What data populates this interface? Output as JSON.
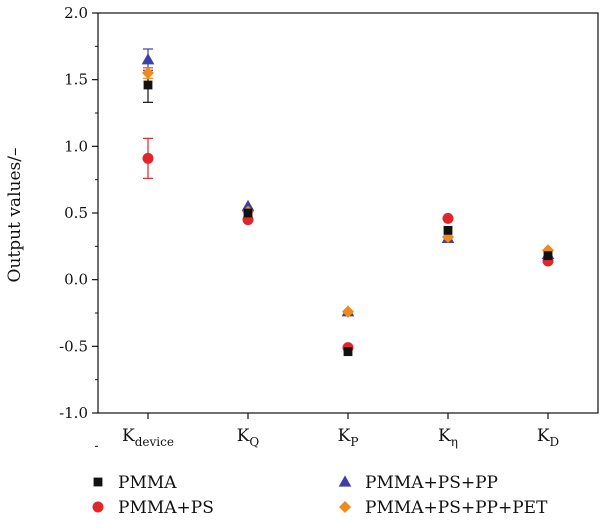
{
  "chart_data": {
    "type": "scatter",
    "title": "",
    "xlabel": "",
    "ylabel": "Output values/–",
    "ylim": [
      -1.0,
      2.0
    ],
    "yticks": [
      "2.0",
      "1.5",
      "1.0",
      "0.5",
      "0.0",
      "-0.5",
      "-1.0"
    ],
    "ytick_values": [
      2.0,
      1.5,
      1.0,
      0.5,
      0.0,
      -0.5,
      -1.0
    ],
    "categories": [
      {
        "main": "K",
        "sub": "device"
      },
      {
        "main": "K",
        "sub": "Q"
      },
      {
        "main": "K",
        "sub": "P"
      },
      {
        "main": "K",
        "sub": "η"
      },
      {
        "main": "K",
        "sub": "D"
      }
    ],
    "grid": false,
    "legend_position": "bottom",
    "series": [
      {
        "name": "PMMA",
        "marker": "square",
        "color": "#111111",
        "values": [
          1.46,
          0.5,
          -0.54,
          0.37,
          0.18
        ],
        "errors": [
          0.13,
          0,
          0,
          0,
          0
        ]
      },
      {
        "name": "PMMA+PS",
        "marker": "circle",
        "color": "#e0262b",
        "values": [
          0.91,
          0.45,
          -0.51,
          0.46,
          0.14
        ],
        "errors": [
          0.15,
          0,
          0,
          0,
          0
        ]
      },
      {
        "name": "PMMA+PS+PP",
        "marker": "triangle",
        "color": "#3b3fa8",
        "values": [
          1.65,
          0.55,
          -0.24,
          0.31,
          0.19
        ],
        "errors": [
          0.08,
          0,
          0,
          0,
          0
        ]
      },
      {
        "name": "PMMA+PS+PP+PET",
        "marker": "diamond",
        "color": "#f08a1c",
        "values": [
          1.55,
          0.51,
          -0.24,
          0.32,
          0.22
        ],
        "errors": [
          0.04,
          0,
          0,
          0,
          0
        ]
      }
    ]
  }
}
